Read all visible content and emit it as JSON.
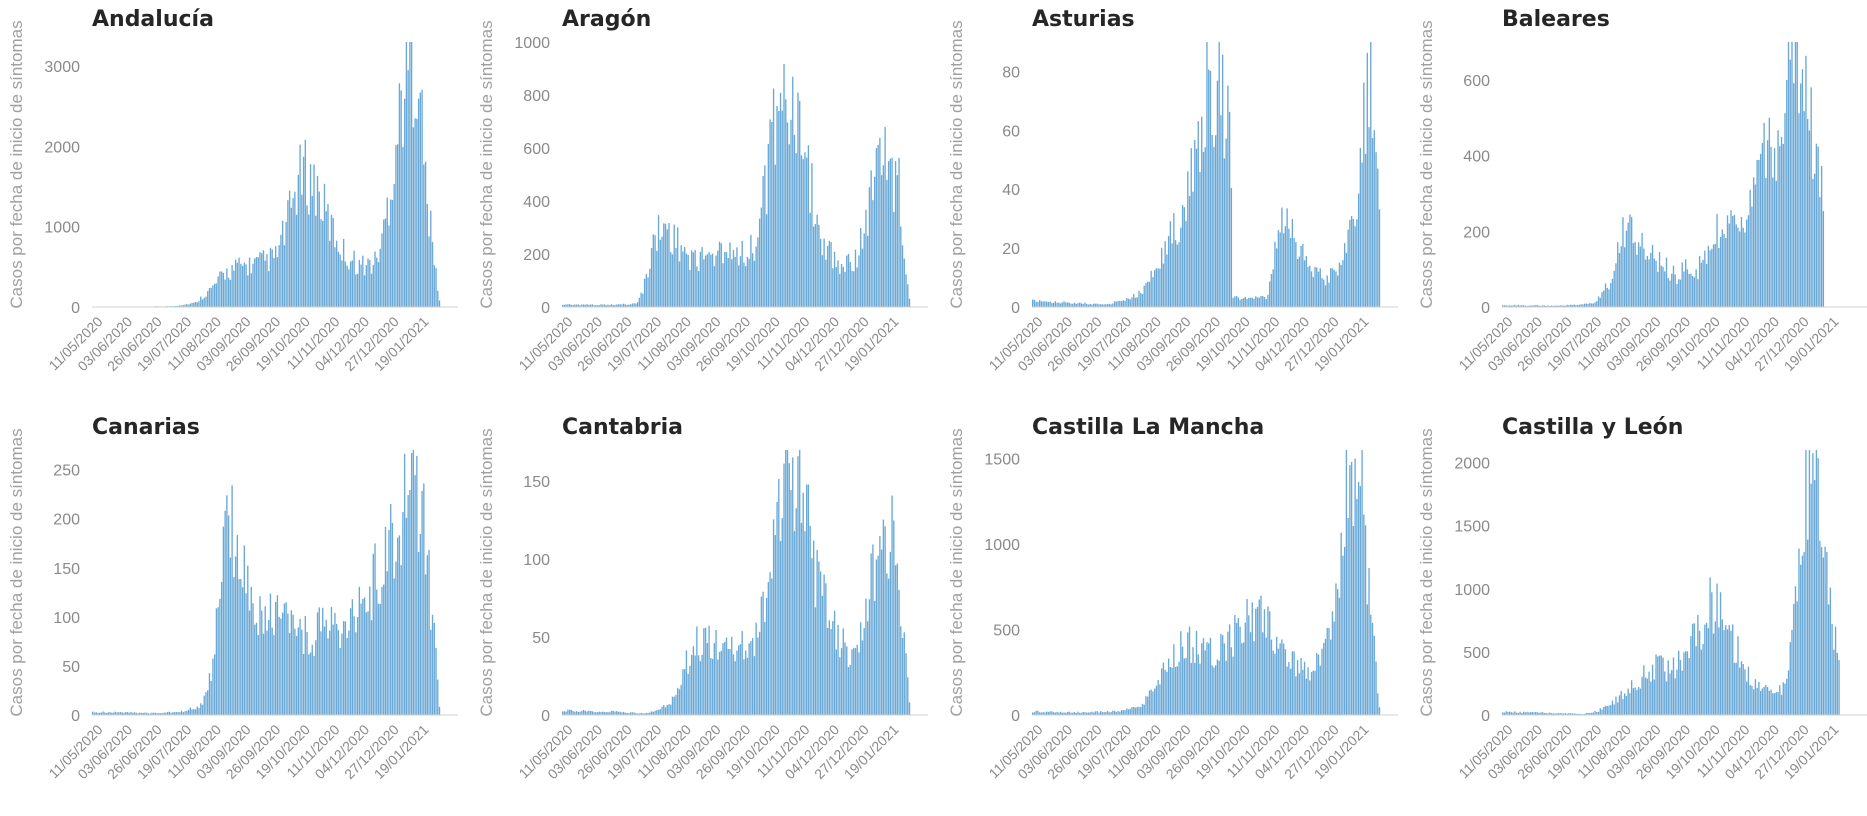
{
  "colors": {
    "bar": "#6aa9d6",
    "title": "#262626",
    "tick": "#8a8a8a",
    "axis_label": "#a0a0a0"
  },
  "chart_data": [
    {
      "type": "bar",
      "title": "Andalucía",
      "ylabel": "Casos por fecha de inicio de síntomas",
      "xlabel": "",
      "ylim": [
        0,
        3300
      ],
      "yticks": [
        0,
        1000,
        2000,
        3000
      ],
      "x_tick_labels": [
        "11/05/2020",
        "03/06/2020",
        "26/06/2020",
        "19/07/2020",
        "11/08/2020",
        "03/09/2020",
        "26/09/2020",
        "19/10/2020",
        "11/11/2020",
        "04/12/2020",
        "27/12/2020",
        "19/01/2021"
      ],
      "profile": [
        [
          0,
          0
        ],
        [
          0.1,
          3
        ],
        [
          0.22,
          10
        ],
        [
          0.28,
          50
        ],
        [
          0.33,
          250
        ],
        [
          0.36,
          420
        ],
        [
          0.4,
          500
        ],
        [
          0.45,
          540
        ],
        [
          0.5,
          620
        ],
        [
          0.53,
          1000
        ],
        [
          0.56,
          1550
        ],
        [
          0.58,
          1650
        ],
        [
          0.61,
          1500
        ],
        [
          0.65,
          1000
        ],
        [
          0.69,
          650
        ],
        [
          0.73,
          520
        ],
        [
          0.77,
          540
        ],
        [
          0.79,
          800
        ],
        [
          0.82,
          1700
        ],
        [
          0.85,
          2800
        ],
        [
          0.87,
          3150
        ],
        [
          0.89,
          3000
        ],
        [
          0.91,
          1500
        ],
        [
          0.93,
          700
        ],
        [
          0.95,
          0
        ]
      ]
    },
    {
      "type": "bar",
      "title": "Aragón",
      "ylabel": "Casos por fecha de inicio de síntomas",
      "xlabel": "",
      "ylim": [
        0,
        1000
      ],
      "yticks": [
        0,
        200,
        400,
        600,
        800,
        1000
      ],
      "x_tick_labels": [
        "11/05/2020",
        "03/06/2020",
        "26/06/2020",
        "19/07/2020",
        "11/08/2020",
        "03/09/2020",
        "26/09/2020",
        "19/10/2020",
        "11/11/2020",
        "04/12/2020",
        "27/12/2020",
        "19/01/2021"
      ],
      "profile": [
        [
          0,
          10
        ],
        [
          0.12,
          8
        ],
        [
          0.2,
          12
        ],
        [
          0.22,
          60
        ],
        [
          0.25,
          270
        ],
        [
          0.28,
          300
        ],
        [
          0.31,
          250
        ],
        [
          0.35,
          190
        ],
        [
          0.4,
          180
        ],
        [
          0.45,
          230
        ],
        [
          0.5,
          200
        ],
        [
          0.53,
          240
        ],
        [
          0.56,
          500
        ],
        [
          0.59,
          850
        ],
        [
          0.61,
          880
        ],
        [
          0.63,
          700
        ],
        [
          0.67,
          500
        ],
        [
          0.71,
          250
        ],
        [
          0.76,
          160
        ],
        [
          0.8,
          180
        ],
        [
          0.83,
          320
        ],
        [
          0.86,
          540
        ],
        [
          0.88,
          600
        ],
        [
          0.9,
          500
        ],
        [
          0.92,
          450
        ],
        [
          0.93,
          250
        ],
        [
          0.95,
          0
        ]
      ]
    },
    {
      "type": "bar",
      "title": "Asturias",
      "ylabel": "Casos por fecha de inicio de síntomas",
      "xlabel": "",
      "ylim": [
        0,
        90
      ],
      "yticks": [
        0,
        20,
        40,
        60,
        80
      ],
      "x_tick_labels": [
        "11/05/2020",
        "03/06/2020",
        "26/06/2020",
        "19/07/2020",
        "11/08/2020",
        "03/09/2020",
        "26/09/2020",
        "19/10/2020",
        "11/11/2020",
        "04/12/2020",
        "27/12/2020",
        "19/01/2021"
      ],
      "profile": [
        [
          0,
          2
        ],
        [
          0.1,
          1.5
        ],
        [
          0.2,
          0.8
        ],
        [
          0.24,
          2
        ],
        [
          0.3,
          5
        ],
        [
          0.34,
          15
        ],
        [
          0.4,
          30
        ],
        [
          0.44,
          50
        ],
        [
          0.47,
          72
        ],
        [
          0.5,
          76
        ],
        [
          0.52,
          70
        ],
        [
          0.54,
          60
        ],
        [
          0.547,
          3
        ],
        [
          0.64,
          3
        ],
        [
          0.67,
          25
        ],
        [
          0.7,
          30
        ],
        [
          0.72,
          20
        ],
        [
          0.76,
          14
        ],
        [
          0.8,
          9
        ],
        [
          0.84,
          14
        ],
        [
          0.88,
          28
        ],
        [
          0.9,
          55
        ],
        [
          0.92,
          75
        ],
        [
          0.935,
          60
        ],
        [
          0.95,
          22
        ]
      ]
    },
    {
      "type": "bar",
      "title": "Baleares",
      "ylabel": "Casos por fecha de inicio de síntomas",
      "xlabel": "",
      "ylim": [
        0,
        700
      ],
      "yticks": [
        0,
        200,
        400,
        600
      ],
      "x_tick_labels": [
        "11/05/2020",
        "03/06/2020",
        "26/06/2020",
        "19/07/2020",
        "11/08/2020",
        "03/09/2020",
        "26/09/2020",
        "19/10/2020",
        "11/11/2020",
        "04/12/2020",
        "27/12/2020",
        "19/01/2021"
      ],
      "profile": [
        [
          0,
          5
        ],
        [
          0.15,
          3
        ],
        [
          0.25,
          10
        ],
        [
          0.29,
          60
        ],
        [
          0.32,
          180
        ],
        [
          0.34,
          230
        ],
        [
          0.36,
          170
        ],
        [
          0.4,
          140
        ],
        [
          0.44,
          110
        ],
        [
          0.48,
          80
        ],
        [
          0.5,
          110
        ],
        [
          0.52,
          70
        ],
        [
          0.56,
          150
        ],
        [
          0.6,
          220
        ],
        [
          0.63,
          200
        ],
        [
          0.66,
          260
        ],
        [
          0.69,
          300
        ],
        [
          0.72,
          400
        ],
        [
          0.75,
          380
        ],
        [
          0.77,
          550
        ],
        [
          0.79,
          640
        ],
        [
          0.81,
          630
        ],
        [
          0.84,
          500
        ],
        [
          0.86,
          350
        ],
        [
          0.88,
          250
        ]
      ]
    },
    {
      "type": "bar",
      "title": "Canarias",
      "ylabel": "Casos por fecha de inicio de síntomas",
      "xlabel": "",
      "ylim": [
        0,
        270
      ],
      "yticks": [
        0,
        50,
        100,
        150,
        200,
        250
      ],
      "x_tick_labels": [
        "11/05/2020",
        "03/06/2020",
        "26/06/2020",
        "19/07/2020",
        "11/08/2020",
        "03/09/2020",
        "26/09/2020",
        "19/10/2020",
        "11/11/2020",
        "04/12/2020",
        "27/12/2020",
        "19/01/2021"
      ],
      "profile": [
        [
          0,
          3
        ],
        [
          0.18,
          2
        ],
        [
          0.25,
          4
        ],
        [
          0.3,
          10
        ],
        [
          0.33,
          50
        ],
        [
          0.35,
          150
        ],
        [
          0.37,
          200
        ],
        [
          0.39,
          190
        ],
        [
          0.41,
          160
        ],
        [
          0.45,
          110
        ],
        [
          0.5,
          100
        ],
        [
          0.55,
          85
        ],
        [
          0.6,
          78
        ],
        [
          0.64,
          100
        ],
        [
          0.68,
          90
        ],
        [
          0.72,
          110
        ],
        [
          0.76,
          130
        ],
        [
          0.8,
          160
        ],
        [
          0.84,
          200
        ],
        [
          0.87,
          250
        ],
        [
          0.89,
          210
        ],
        [
          0.91,
          180
        ],
        [
          0.93,
          90
        ],
        [
          0.95,
          0
        ]
      ]
    },
    {
      "type": "bar",
      "title": "Cantabria",
      "ylabel": "Casos por fecha de inicio de síntomas",
      "xlabel": "",
      "ylim": [
        0,
        170
      ],
      "yticks": [
        0,
        50,
        100,
        150
      ],
      "x_tick_labels": [
        "11/05/2020",
        "03/06/2020",
        "26/06/2020",
        "19/07/2020",
        "11/08/2020",
        "03/09/2020",
        "26/09/2020",
        "19/10/2020",
        "11/11/2020",
        "04/12/2020",
        "27/12/2020",
        "19/01/2021"
      ],
      "profile": [
        [
          0,
          3
        ],
        [
          0.15,
          2
        ],
        [
          0.22,
          1
        ],
        [
          0.26,
          3
        ],
        [
          0.3,
          10
        ],
        [
          0.33,
          30
        ],
        [
          0.36,
          45
        ],
        [
          0.4,
          50
        ],
        [
          0.44,
          40
        ],
        [
          0.48,
          45
        ],
        [
          0.52,
          40
        ],
        [
          0.55,
          70
        ],
        [
          0.58,
          130
        ],
        [
          0.61,
          155
        ],
        [
          0.64,
          160
        ],
        [
          0.66,
          140
        ],
        [
          0.7,
          80
        ],
        [
          0.73,
          60
        ],
        [
          0.76,
          45
        ],
        [
          0.8,
          40
        ],
        [
          0.83,
          70
        ],
        [
          0.86,
          110
        ],
        [
          0.88,
          115
        ],
        [
          0.9,
          110
        ],
        [
          0.92,
          90
        ],
        [
          0.94,
          30
        ],
        [
          0.95,
          0
        ]
      ]
    },
    {
      "type": "bar",
      "title": "Castilla La Mancha",
      "ylabel": "Casos por fecha de inicio de síntomas",
      "xlabel": "",
      "ylim": [
        0,
        1550
      ],
      "yticks": [
        0,
        500,
        1000,
        1500
      ],
      "x_tick_labels": [
        "11/05/2020",
        "03/06/2020",
        "26/06/2020",
        "19/07/2020",
        "11/08/2020",
        "03/09/2020",
        "26/09/2020",
        "19/10/2020",
        "11/11/2020",
        "04/12/2020",
        "27/12/2020",
        "19/01/2021"
      ],
      "profile": [
        [
          0,
          20
        ],
        [
          0.15,
          15
        ],
        [
          0.25,
          25
        ],
        [
          0.3,
          60
        ],
        [
          0.34,
          200
        ],
        [
          0.38,
          360
        ],
        [
          0.42,
          440
        ],
        [
          0.46,
          380
        ],
        [
          0.5,
          350
        ],
        [
          0.54,
          450
        ],
        [
          0.58,
          560
        ],
        [
          0.62,
          580
        ],
        [
          0.66,
          450
        ],
        [
          0.7,
          320
        ],
        [
          0.74,
          250
        ],
        [
          0.78,
          300
        ],
        [
          0.81,
          450
        ],
        [
          0.84,
          900
        ],
        [
          0.86,
          1350
        ],
        [
          0.88,
          1500
        ],
        [
          0.9,
          1300
        ],
        [
          0.92,
          700
        ],
        [
          0.94,
          200
        ],
        [
          0.95,
          0
        ]
      ]
    },
    {
      "type": "bar",
      "title": "Castilla y León",
      "ylabel": "Casos por fecha de inicio de síntomas",
      "xlabel": "",
      "ylim": [
        0,
        2100
      ],
      "yticks": [
        0,
        500,
        1000,
        1500,
        2000
      ],
      "x_tick_labels": [
        "11/05/2020",
        "03/06/2020",
        "26/06/2020",
        "19/07/2020",
        "11/08/2020",
        "03/09/2020",
        "26/09/2020",
        "19/10/2020",
        "11/11/2020",
        "04/12/2020",
        "27/12/2020",
        "19/01/2021"
      ],
      "profile": [
        [
          0,
          25
        ],
        [
          0.15,
          15
        ],
        [
          0.22,
          10
        ],
        [
          0.26,
          30
        ],
        [
          0.3,
          100
        ],
        [
          0.34,
          200
        ],
        [
          0.38,
          300
        ],
        [
          0.42,
          380
        ],
        [
          0.46,
          350
        ],
        [
          0.5,
          450
        ],
        [
          0.54,
          700
        ],
        [
          0.57,
          880
        ],
        [
          0.6,
          850
        ],
        [
          0.63,
          600
        ],
        [
          0.66,
          350
        ],
        [
          0.69,
          250
        ],
        [
          0.72,
          200
        ],
        [
          0.76,
          200
        ],
        [
          0.78,
          400
        ],
        [
          0.8,
          900
        ],
        [
          0.82,
          1500
        ],
        [
          0.84,
          1900
        ],
        [
          0.86,
          1850
        ],
        [
          0.88,
          1200
        ],
        [
          0.9,
          700
        ],
        [
          0.92,
          400
        ]
      ]
    }
  ]
}
